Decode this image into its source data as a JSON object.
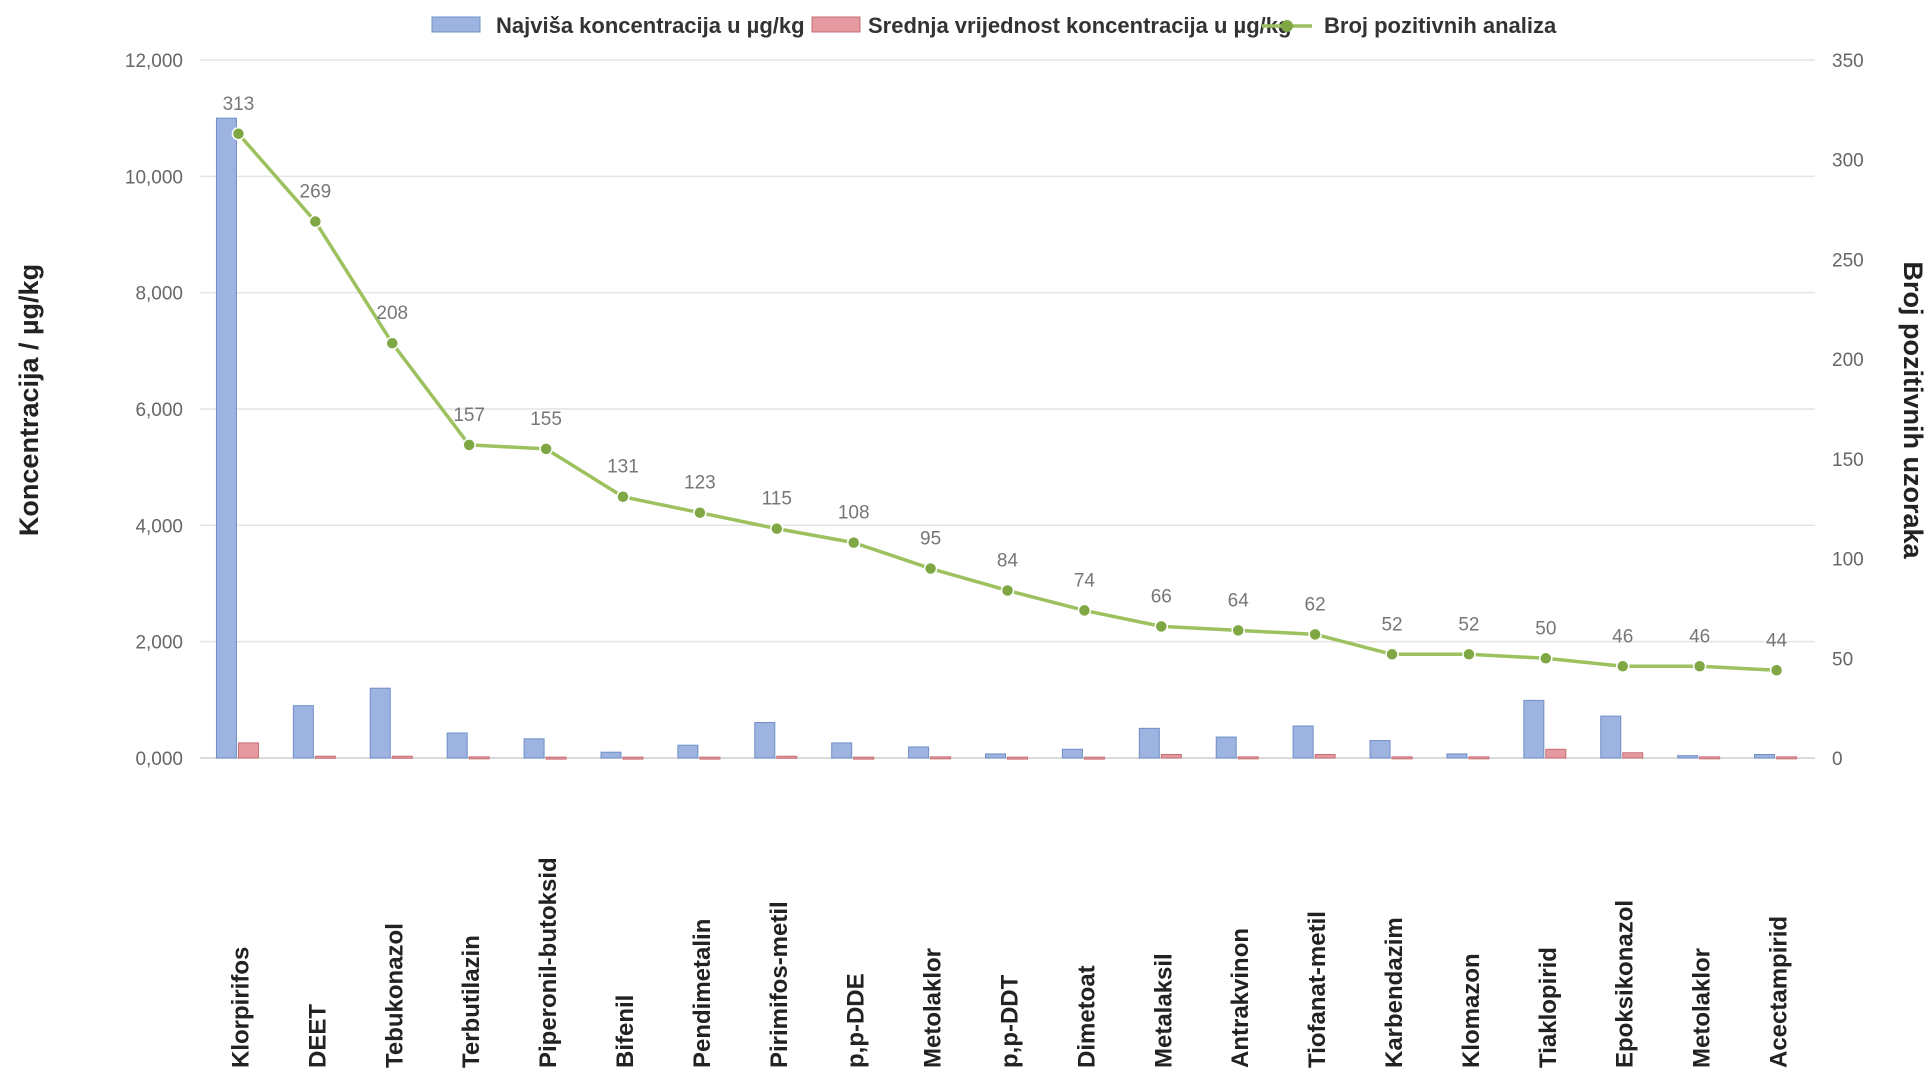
{
  "chart_data": {
    "type": "bar",
    "categories": [
      "Klorpirifos",
      "DEET",
      "Tebukonazol",
      "Terbutilazin",
      "Piperonil-butoksid",
      "Bifenil",
      "Pendimetalin",
      "Pirimifos-metil",
      "p,p-DDE",
      "Metolaklor",
      "p,p-DDT",
      "Dimetoat",
      "Metalaksil",
      "Antrakvinon",
      "Tiofanat-metil",
      "Karbendazim",
      "Klomazon",
      "Tiaklopirid",
      "Epoksikonazol",
      "Metolaklor",
      "Acectampirid"
    ],
    "series": [
      {
        "name": "Najviša koncentracija u µg/kg",
        "type": "bar",
        "axis": "left",
        "color": "#9db3e0",
        "stroke": "#6f8fc8",
        "values": [
          11000,
          900,
          1200,
          430,
          330,
          100,
          220,
          610,
          260,
          190,
          70,
          150,
          510,
          360,
          550,
          300,
          70,
          990,
          720,
          40,
          60
        ]
      },
      {
        "name": "Srednja vrijednost koncentracija u µg/kg",
        "type": "bar",
        "axis": "left",
        "color": "#e49aa0",
        "stroke": "#c86e76",
        "values": [
          260,
          30,
          30,
          20,
          15,
          15,
          15,
          30,
          15,
          20,
          15,
          15,
          60,
          20,
          60,
          20,
          20,
          150,
          90,
          20,
          20
        ]
      },
      {
        "name": "Broj pozitivnih analiza",
        "type": "line",
        "axis": "right",
        "color": "#9cc15e",
        "marker_color": "#7fa844",
        "values": [
          313,
          269,
          208,
          157,
          155,
          131,
          123,
          115,
          108,
          95,
          84,
          74,
          66,
          64,
          62,
          52,
          52,
          50,
          46,
          46,
          44
        ]
      }
    ],
    "data_labels": [
      "313",
      "269",
      "208",
      "157",
      "155",
      "131",
      "123",
      "115",
      "108",
      "95",
      "84",
      "74",
      "66",
      "64",
      "62",
      "52",
      "52",
      "50",
      "46",
      "46",
      "44"
    ],
    "ylabel": "Koncentracija / µg/kg",
    "y2label": "Broj pozitivnih uzoraka",
    "ylim": [
      0,
      12000
    ],
    "y2lim": [
      0,
      350
    ],
    "yticks": [
      "0,000",
      "2,000",
      "4,000",
      "6,000",
      "8,000",
      "10,000",
      "12,000"
    ],
    "y2ticks": [
      "0",
      "50",
      "100",
      "150",
      "200",
      "250",
      "300",
      "350"
    ],
    "grid": true,
    "legend": "top"
  }
}
